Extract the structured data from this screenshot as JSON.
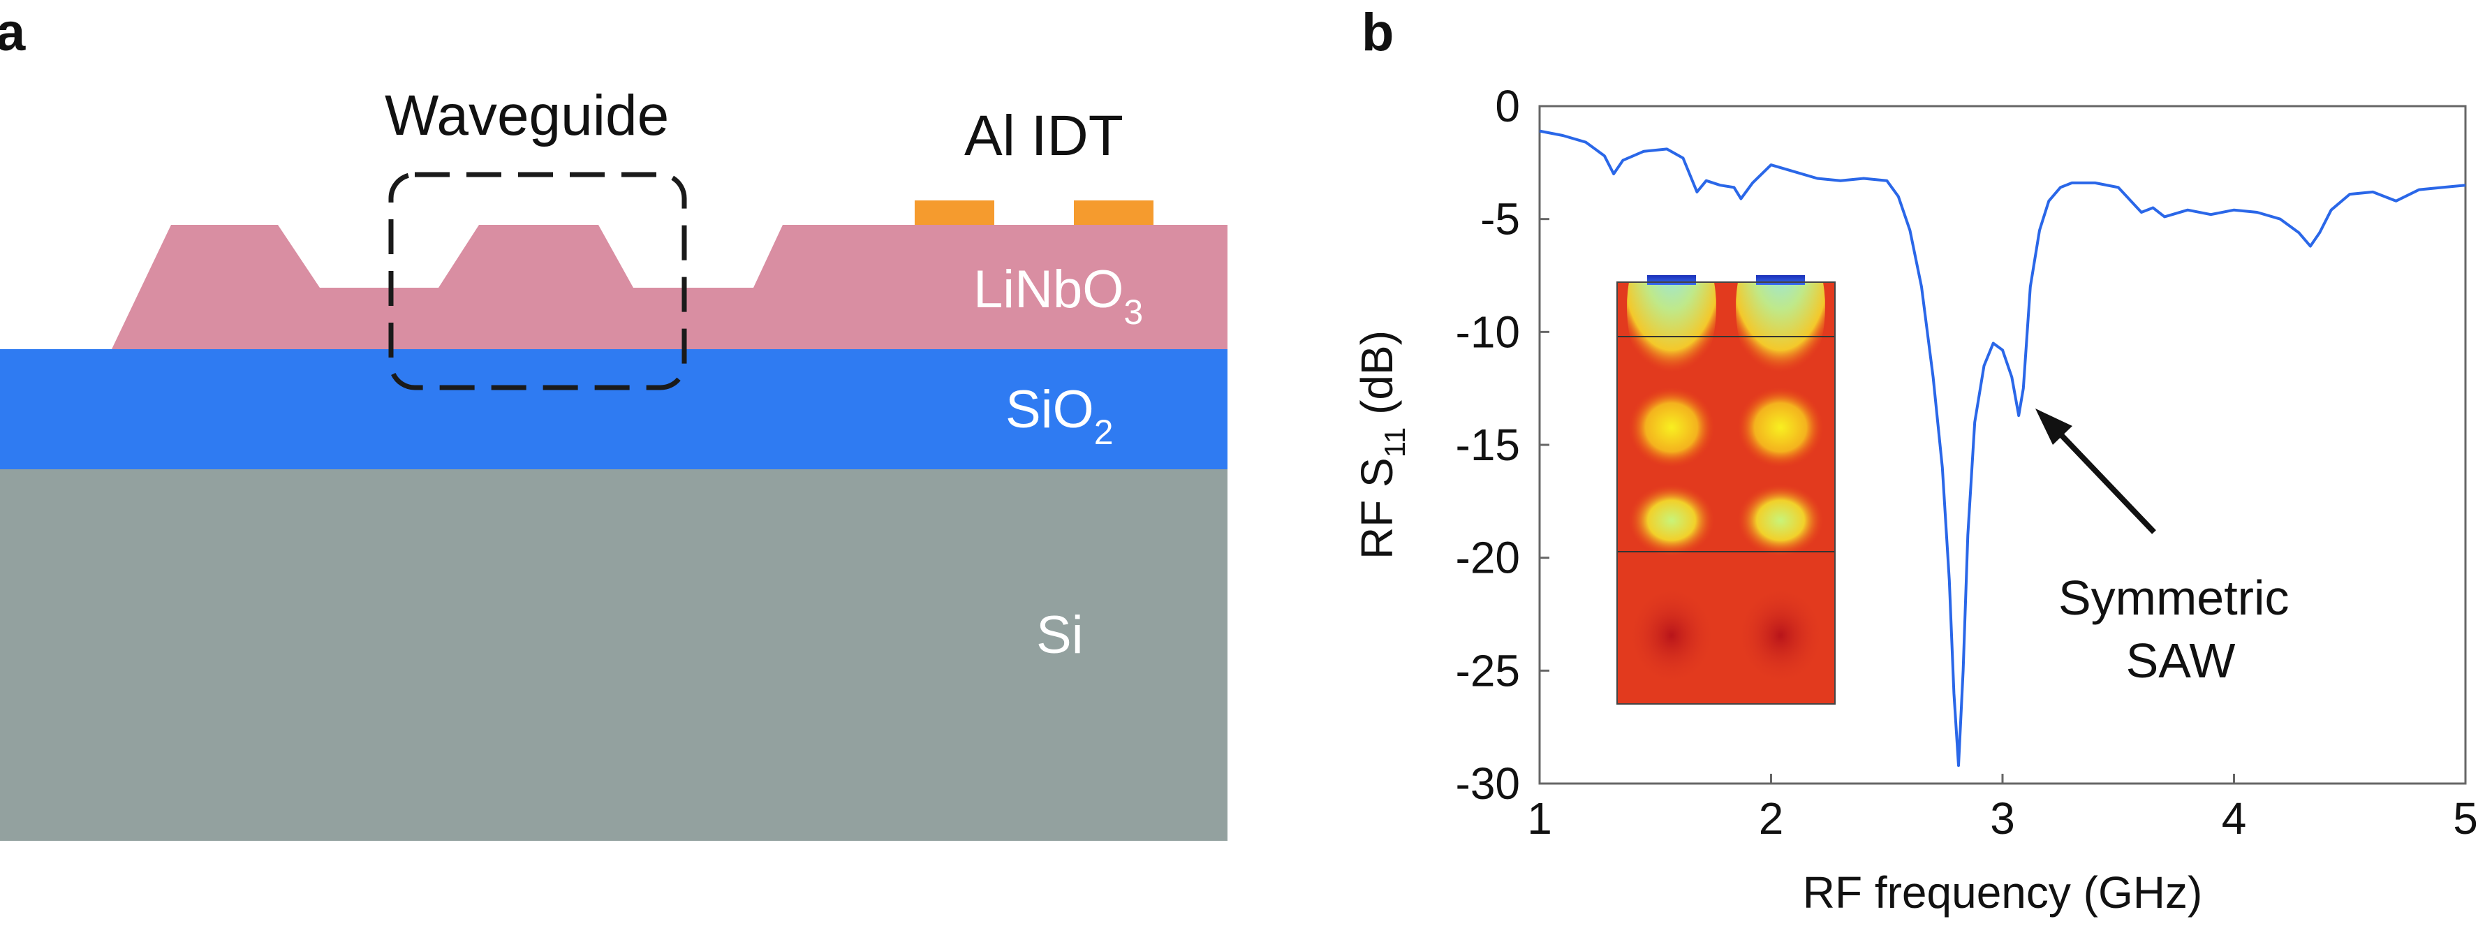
{
  "panel_a": {
    "label": "a",
    "layers": {
      "linbo3": {
        "text": "LiNbO",
        "sub": "3",
        "color": "#d98ea2"
      },
      "sio2": {
        "text": "SiO",
        "sub": "2",
        "color": "#2f7bf2"
      },
      "si": {
        "text": "Si",
        "color": "#93a19f"
      }
    },
    "waveguide_label": "Waveguide",
    "idt_label": "Al IDT",
    "idt_color": "#f59b2e"
  },
  "panel_b": {
    "label": "b",
    "annotation": {
      "line1": "Symmetric",
      "line2": "SAW"
    },
    "line_color": "#2a67e8"
  },
  "chart_data": {
    "type": "line",
    "xlabel": "RF frequency (GHz)",
    "ylabel_main": "RF S",
    "ylabel_sub": "11",
    "ylabel_unit": " (dB)",
    "xlim": [
      1,
      5
    ],
    "ylim": [
      -30,
      0
    ],
    "xticks": [
      1,
      2,
      3,
      4,
      5
    ],
    "yticks": [
      0,
      -5,
      -10,
      -15,
      -20,
      -25,
      -30
    ],
    "grid": false,
    "series": [
      {
        "name": "S11",
        "x": [
          1.0,
          1.1,
          1.2,
          1.28,
          1.32,
          1.36,
          1.45,
          1.55,
          1.62,
          1.68,
          1.72,
          1.78,
          1.84,
          1.87,
          1.92,
          2.0,
          2.1,
          2.2,
          2.3,
          2.4,
          2.5,
          2.55,
          2.6,
          2.65,
          2.7,
          2.74,
          2.77,
          2.79,
          2.81,
          2.83,
          2.85,
          2.88,
          2.92,
          2.96,
          3.0,
          3.04,
          3.07,
          3.09,
          3.12,
          3.16,
          3.2,
          3.25,
          3.3,
          3.4,
          3.5,
          3.6,
          3.65,
          3.7,
          3.8,
          3.9,
          4.0,
          4.1,
          4.2,
          4.28,
          4.33,
          4.37,
          4.42,
          4.5,
          4.6,
          4.7,
          4.8,
          4.9,
          5.0
        ],
        "y": [
          -1.1,
          -1.3,
          -1.6,
          -2.2,
          -3.0,
          -2.4,
          -2.0,
          -1.9,
          -2.3,
          -3.8,
          -3.3,
          -3.5,
          -3.6,
          -4.1,
          -3.4,
          -2.6,
          -2.9,
          -3.2,
          -3.3,
          -3.2,
          -3.3,
          -4.0,
          -5.5,
          -8.0,
          -12.0,
          -16.0,
          -21.0,
          -26.0,
          -29.2,
          -25.0,
          -19.0,
          -14.0,
          -11.5,
          -10.5,
          -10.8,
          -12.0,
          -13.7,
          -12.5,
          -8.0,
          -5.5,
          -4.2,
          -3.6,
          -3.4,
          -3.4,
          -3.6,
          -4.7,
          -4.5,
          -4.9,
          -4.6,
          -4.8,
          -4.6,
          -4.7,
          -5.0,
          -5.6,
          -6.2,
          -5.6,
          -4.6,
          -3.9,
          -3.8,
          -4.2,
          -3.7,
          -3.6,
          -3.5
        ]
      }
    ]
  }
}
